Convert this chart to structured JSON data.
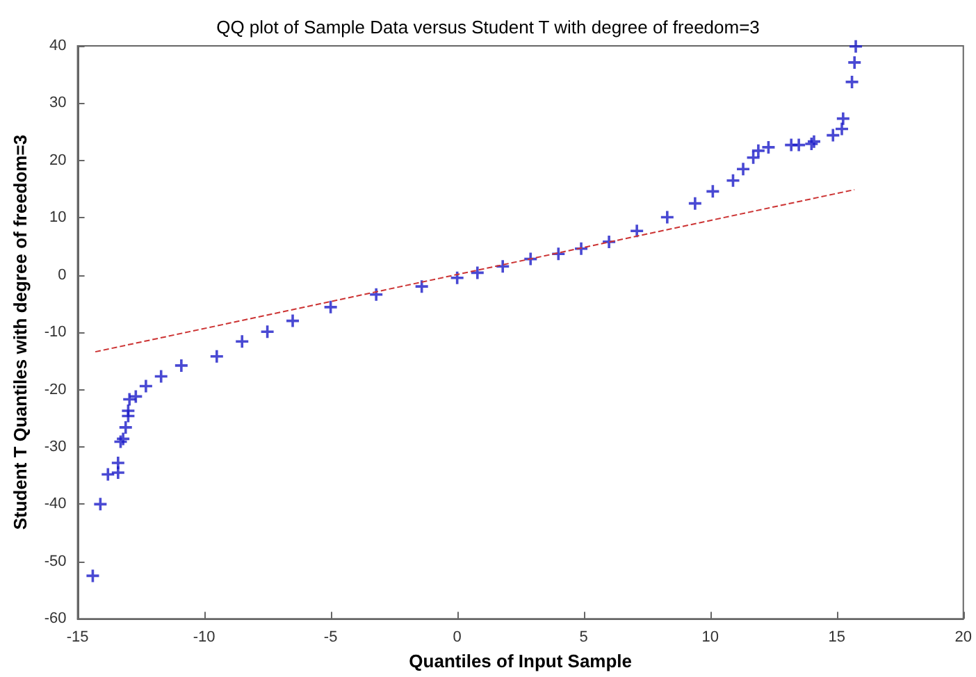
{
  "chart_data": {
    "type": "scatter",
    "title": "QQ plot of Sample Data versus Student T with degree of freedom=3",
    "xlabel": "Quantiles of Input Sample",
    "ylabel": "Student T Quantiles with degree of freedom=3",
    "xlim": [
      -15,
      20
    ],
    "xticks": [
      -15,
      -10,
      -5,
      0,
      5,
      10,
      15,
      20
    ],
    "ylim": [
      -60,
      40
    ],
    "yticks": [
      -60,
      -50,
      -40,
      -30,
      -20,
      -10,
      0,
      10,
      20,
      30,
      40
    ],
    "grid": false,
    "series": [
      {
        "color": "#1c1cc8",
        "marker": "cross",
        "x": [
          -14.4,
          -14.1,
          -13.8,
          -13.4,
          -13.4,
          -13.3,
          -13.2,
          -13.1,
          -13.0,
          -13.0,
          -12.95,
          -12.7,
          -12.3,
          -11.7,
          -10.9,
          -9.5,
          -8.5,
          -7.5,
          -6.5,
          -5.0,
          -3.2,
          -1.4,
          0,
          0.8,
          1.8,
          2.9,
          4.0,
          4.9,
          6.0,
          7.1,
          8.3,
          9.4,
          10.1,
          10.9,
          11.3,
          11.7,
          11.9,
          12.3,
          13.2,
          13.5,
          14.0,
          14.1,
          14.85,
          15.2,
          15.25,
          15.6,
          15.7,
          15.75
        ],
        "values": [
          -52.5,
          -40,
          -34.8,
          -34.5,
          -32.8,
          -29.1,
          -28.6,
          -26.6,
          -24.6,
          -23.7,
          -21.7,
          -21.2,
          -19.4,
          -17.7,
          -15.8,
          -14.2,
          -11.6,
          -9.9,
          -8.0,
          -5.6,
          -3.4,
          -2.0,
          -0.5,
          0.4,
          1.5,
          2.8,
          3.7,
          4.6,
          5.8,
          7.7,
          10.1,
          12.5,
          14.6,
          16.5,
          18.5,
          20.5,
          21.7,
          22.3,
          22.7,
          22.7,
          22.9,
          23.3,
          24.4,
          25.5,
          27.3,
          33.7,
          37.1,
          39.9
        ]
      },
      {
        "type": "line",
        "color": "#cc3333",
        "line_style": "dashed",
        "marker": "none",
        "x": [
          -14.3,
          15.7
        ],
        "values": [
          -13.4,
          14.9
        ]
      }
    ]
  }
}
